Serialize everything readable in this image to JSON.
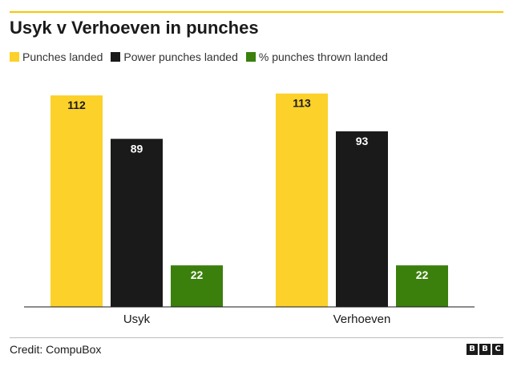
{
  "chart_data": {
    "type": "bar",
    "title": "Usyk v Verhoeven in punches",
    "categories": [
      "Usyk",
      "Verhoeven"
    ],
    "series": [
      {
        "name": "Punches landed",
        "values": [
          112,
          113
        ],
        "color": "#fcd12a",
        "label_color": "#1a1a1a"
      },
      {
        "name": "Power punches landed",
        "values": [
          89,
          93
        ],
        "color": "#1a1a1a",
        "label_color": "#ffffff"
      },
      {
        "name": "% punches thrown landed",
        "values": [
          22,
          22
        ],
        "color": "#3b7f0d",
        "label_color": "#ffffff"
      }
    ],
    "xlabel": "",
    "ylabel": "",
    "ylim": [
      0,
      115
    ],
    "grid": false,
    "legend_position": "top-left"
  },
  "credit": "Credit: CompuBox",
  "logo": {
    "letters": [
      "B",
      "B",
      "C"
    ]
  },
  "colors": {
    "accent_rule": "#f6c700"
  }
}
